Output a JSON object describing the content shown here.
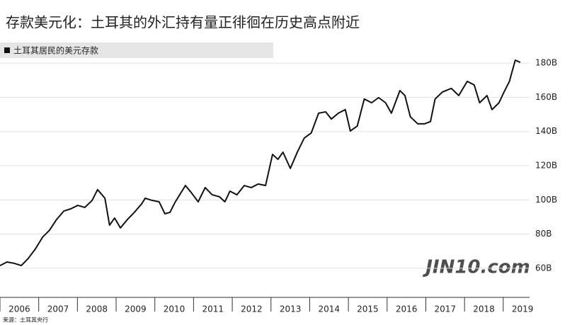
{
  "chart_data": {
    "type": "line",
    "title": "存款美元化：土耳其的外汇持有量正徘徊在历史高点附近",
    "source": "来源：土耳其央行",
    "watermark": "JIN10.com",
    "x": [
      2006,
      2006.18,
      2006.37,
      2006.55,
      2006.73,
      2006.91,
      2007.1,
      2007.28,
      2007.46,
      2007.65,
      2007.83,
      2008.01,
      2008.19,
      2008.38,
      2008.52,
      2008.71,
      2008.83,
      2008.96,
      2009.11,
      2009.29,
      2009.47,
      2009.66,
      2009.75,
      2009.93,
      2010.11,
      2010.26,
      2010.39,
      2010.53,
      2010.79,
      2010.94,
      2011.12,
      2011.3,
      2011.48,
      2011.67,
      2011.81,
      2011.94,
      2012.12,
      2012.31,
      2012.49,
      2012.67,
      2012.86,
      2013.04,
      2013.18,
      2013.31,
      2013.5,
      2013.68,
      2013.86,
      2014.04,
      2014.23,
      2014.41,
      2014.56,
      2014.74,
      2014.92,
      2015.05,
      2015.23,
      2015.41,
      2015.6,
      2015.78,
      2015.96,
      2016.11,
      2016.33,
      2016.46,
      2016.6,
      2016.79,
      2016.97,
      2017.12,
      2017.24,
      2017.43,
      2017.66,
      2017.85,
      2018.07,
      2018.25,
      2018.39,
      2018.58,
      2018.71,
      2018.89,
      2019.02,
      2019.16,
      2019.31,
      2019.44
    ],
    "series": [
      {
        "name": "土耳其居民的美元存款",
        "color": "#111111",
        "values": [
          61.6,
          63.7,
          62.9,
          61.6,
          65.8,
          71.2,
          78.2,
          82.3,
          88.5,
          93.5,
          94.8,
          96.8,
          95.6,
          99.7,
          106,
          101,
          85.2,
          89.4,
          83.6,
          88.5,
          92.7,
          97.7,
          101,
          99.7,
          98.9,
          91.9,
          92.7,
          98.9,
          108.4,
          104.3,
          98.9,
          107.2,
          103,
          101.8,
          98.9,
          105.1,
          103,
          108.4,
          107.2,
          109.3,
          108.4,
          126.6,
          123.7,
          127.9,
          118.4,
          127.9,
          136.2,
          139.1,
          150.7,
          151.5,
          147.3,
          150.7,
          152.8,
          140.3,
          143.2,
          159,
          156.8,
          159.8,
          156.8,
          150.7,
          163.9,
          161,
          148.6,
          144.5,
          144.5,
          145.8,
          159,
          163.1,
          165.2,
          161,
          169.3,
          167.2,
          156.8,
          161,
          152.8,
          156.8,
          163.1,
          169.3,
          181.7,
          180.4
        ]
      }
    ],
    "xlim": [
      2006,
      2019.68
    ],
    "xticks": [
      2006,
      2007,
      2008,
      2009,
      2010,
      2011,
      2012,
      2013,
      2014,
      2015,
      2016,
      2017,
      2018,
      2019
    ],
    "ylim": [
      43,
      185
    ],
    "yticks": [
      {
        "value": 60,
        "label": "60B"
      },
      {
        "value": 80,
        "label": "80B"
      },
      {
        "value": 100,
        "label": "100B"
      },
      {
        "value": 120,
        "label": "120B"
      },
      {
        "value": 140,
        "label": "140B"
      },
      {
        "value": 160,
        "label": "160B"
      },
      {
        "value": 180,
        "label": "180B"
      }
    ],
    "grid": true
  }
}
